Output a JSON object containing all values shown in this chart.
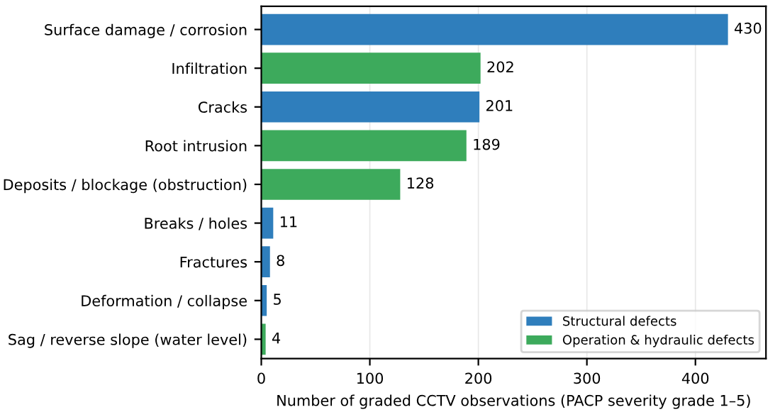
{
  "chart_data": {
    "type": "bar",
    "orientation": "horizontal",
    "xlabel": "Number of graded CCTV observations (PACP severity grade 1–5)",
    "categories": [
      "Surface damage / corrosion",
      "Infiltration",
      "Cracks",
      "Root intrusion",
      "Deposits / blockage (obstruction)",
      "Breaks / holes",
      "Fractures",
      "Deformation / collapse",
      "Sag / reverse slope (water level)"
    ],
    "series": [
      {
        "name": "Structural defects",
        "color": "#2f7ebc",
        "values": [
          430,
          null,
          201,
          null,
          null,
          11,
          8,
          5,
          null
        ]
      },
      {
        "name": "Operation & hydraulic defects",
        "color": "#3daa5c",
        "values": [
          null,
          202,
          null,
          189,
          128,
          null,
          null,
          null,
          4
        ]
      }
    ],
    "xlim": [
      0,
      465
    ],
    "xticks": [
      0,
      100,
      200,
      300,
      400
    ],
    "grid": "x",
    "legend": "bottom right",
    "data_labels": true
  }
}
